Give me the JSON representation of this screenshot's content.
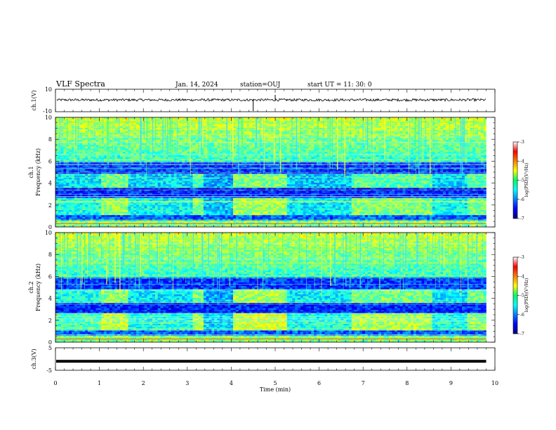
{
  "header": {
    "title": "VLF Spectra",
    "date": "Jan. 14, 2024",
    "station": "station=OUJ",
    "start": "start UT =  11: 30: 0"
  },
  "chart_data": [
    {
      "type": "line",
      "name": "ch1-waveform",
      "ylabel": "ch.1(V)",
      "ylim": [
        -10,
        10
      ],
      "yticks": [
        "10",
        "-10"
      ],
      "xlim": [
        0,
        10
      ],
      "approx_level": 0.5
    },
    {
      "type": "heatmap",
      "name": "ch1-spectrogram",
      "ylabel_top": "ch.1",
      "ylabel": "Frequency (kHz)",
      "ylim": [
        0,
        10
      ],
      "yticks": [
        "0",
        "2",
        "4",
        "6",
        "8",
        "10"
      ],
      "xlim": [
        0,
        10
      ],
      "data_end_min": 9.8,
      "colorbar": {
        "label": "log(PSD)(V²/Hz)",
        "range": [
          -7,
          -3
        ],
        "ticks": [
          "-3",
          "-4",
          "-5",
          "-6",
          "-7"
        ]
      }
    },
    {
      "type": "heatmap",
      "name": "ch2-spectrogram",
      "ylabel_top": "ch.2",
      "ylabel": "Frequency (kHz)",
      "ylim": [
        0,
        10
      ],
      "yticks": [
        "0",
        "2",
        "4",
        "6",
        "8",
        "10"
      ],
      "xlim": [
        0,
        10
      ],
      "data_end_min": 9.8,
      "colorbar": {
        "label": "log(PSD)(V²/Hz)",
        "range": [
          -7,
          -3
        ],
        "ticks": [
          "-3",
          "-4",
          "-5",
          "-6",
          "-7"
        ]
      }
    },
    {
      "type": "line",
      "name": "ch3-waveform",
      "ylabel": "ch.3(V)",
      "ylim": [
        -5,
        5
      ],
      "yticks": [
        "5",
        "-5"
      ],
      "xlim": [
        0,
        10
      ],
      "approx_level": -1
    }
  ],
  "xaxis": {
    "label": "Time (min)",
    "ticks": [
      "0",
      "1",
      "2",
      "3",
      "4",
      "5",
      "6",
      "7",
      "8",
      "9",
      "10"
    ]
  },
  "colors": {
    "panel_border": "#000000",
    "background": "#ffffff"
  }
}
